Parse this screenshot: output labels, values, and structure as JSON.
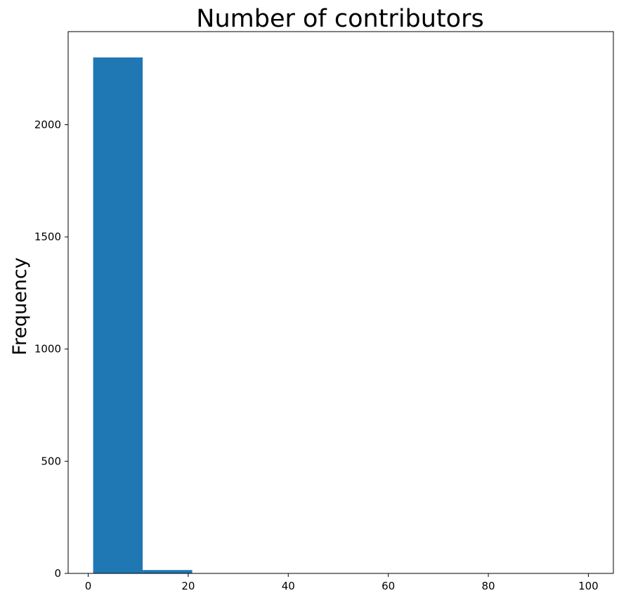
{
  "chart_data": {
    "type": "bar",
    "title": "Number of contributors",
    "xlabel": "",
    "ylabel": "Frequency",
    "bins": [
      {
        "start": 1,
        "end": 10.9,
        "value": 2300
      },
      {
        "start": 10.9,
        "end": 20.8,
        "value": 15
      },
      {
        "start": 20.8,
        "end": 30.7,
        "value": 0
      },
      {
        "start": 30.7,
        "end": 40.6,
        "value": 0
      },
      {
        "start": 40.6,
        "end": 50.5,
        "value": 0
      },
      {
        "start": 50.5,
        "end": 60.4,
        "value": 0
      },
      {
        "start": 60.4,
        "end": 70.3,
        "value": 0
      },
      {
        "start": 70.3,
        "end": 80.2,
        "value": 0
      },
      {
        "start": 80.2,
        "end": 90.1,
        "value": 0
      },
      {
        "start": 90.1,
        "end": 100,
        "value": 1
      }
    ],
    "xlim": [
      -4,
      105
    ],
    "ylim": [
      0,
      2415
    ],
    "xticks": [
      0,
      20,
      40,
      60,
      80,
      100
    ],
    "yticks": [
      0,
      500,
      1000,
      1500,
      2000
    ],
    "grid": false,
    "bar_color": "#1f77b4"
  }
}
